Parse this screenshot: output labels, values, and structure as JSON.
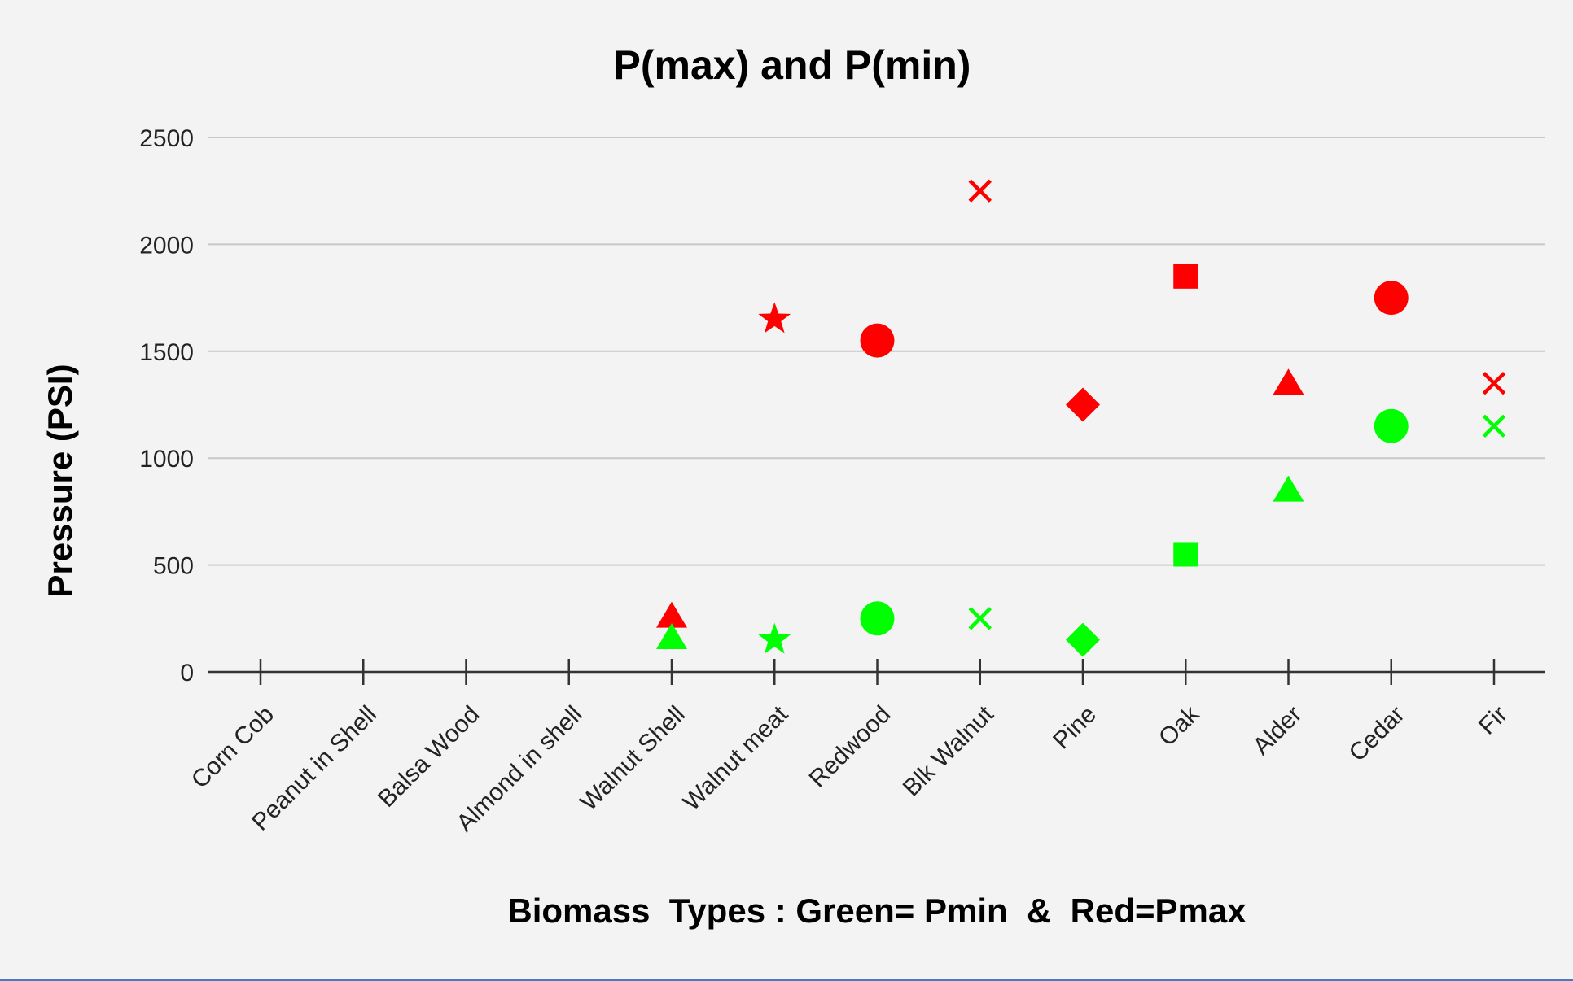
{
  "chart_data": {
    "type": "scatter",
    "title": "P(max) and P(min)",
    "xlabel": "Biomass  Types : Green= Pmin  &  Red=Pmax",
    "ylabel": "Pressure (PSI)",
    "categories": [
      "Corn Cob",
      "Peanut in Shell",
      "Balsa Wood",
      "Almond in shell",
      "Walnut Shell",
      "Walnut meat",
      "Redwood",
      "Blk Walnut",
      "Pine",
      "Oak",
      "Alder",
      "Cedar",
      "Fir"
    ],
    "ylim": [
      0,
      2500
    ],
    "yticks": [
      0,
      500,
      1000,
      1500,
      2000,
      2500
    ],
    "grid": true,
    "legend": "none",
    "colors": {
      "pmax": "#ff0000",
      "pmin": "#00ff00",
      "background": "#f3f3f3"
    },
    "series": [
      {
        "color": "#ff0000",
        "points": [
          {
            "category": "Walnut Shell",
            "value": 260,
            "marker": "triangle"
          },
          {
            "category": "Walnut meat",
            "value": 1650,
            "marker": "star"
          },
          {
            "category": "Redwood",
            "value": 1550,
            "marker": "circle"
          },
          {
            "category": "Blk Walnut",
            "value": 2250,
            "marker": "x"
          },
          {
            "category": "Pine",
            "value": 1250,
            "marker": "diamond"
          },
          {
            "category": "Oak",
            "value": 1850,
            "marker": "square"
          },
          {
            "category": "Alder",
            "value": 1350,
            "marker": "triangle"
          },
          {
            "category": "Cedar",
            "value": 1750,
            "marker": "circle"
          },
          {
            "category": "Fir",
            "value": 1350,
            "marker": "x"
          }
        ]
      },
      {
        "color": "#00ff00",
        "points": [
          {
            "category": "Walnut Shell",
            "value": 160,
            "marker": "triangle"
          },
          {
            "category": "Walnut meat",
            "value": 150,
            "marker": "star"
          },
          {
            "category": "Redwood",
            "value": 250,
            "marker": "circle"
          },
          {
            "category": "Blk Walnut",
            "value": 250,
            "marker": "x"
          },
          {
            "category": "Pine",
            "value": 150,
            "marker": "diamond"
          },
          {
            "category": "Oak",
            "value": 550,
            "marker": "square"
          },
          {
            "category": "Alder",
            "value": 850,
            "marker": "triangle"
          },
          {
            "category": "Cedar",
            "value": 1150,
            "marker": "circle"
          },
          {
            "category": "Fir",
            "value": 1150,
            "marker": "x"
          }
        ]
      }
    ]
  }
}
